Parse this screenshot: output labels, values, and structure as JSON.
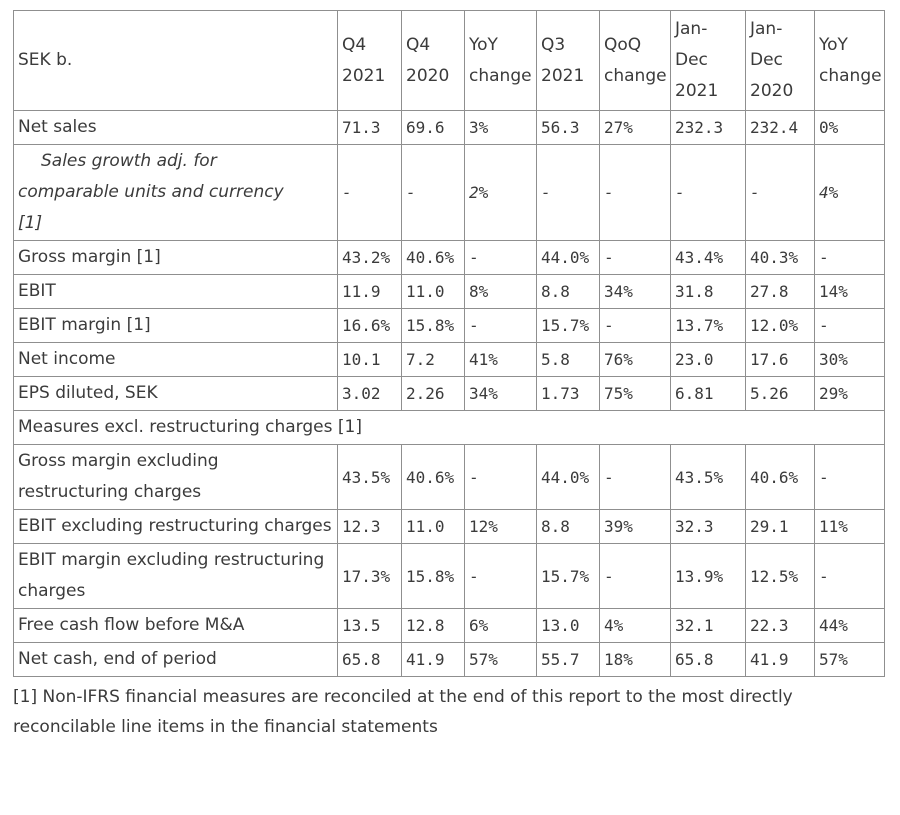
{
  "table": {
    "corner_label": "SEK b.",
    "columns": [
      "Q4\n2021",
      "Q4\n2020",
      "YoY\nchange",
      "Q3\n2021",
      "QoQ\nchange",
      "Jan-\nDec\n2021",
      "Jan-\nDec\n2020",
      "YoY\nchange"
    ],
    "rows": [
      {
        "type": "data",
        "label": "Net sales",
        "values": [
          "71.3",
          "69.6",
          "3%",
          "56.3",
          "27%",
          "232.3",
          "232.4",
          "0%"
        ]
      },
      {
        "type": "data",
        "italic": true,
        "indent": true,
        "label": "Sales growth adj. for\ncomparable units and currency\n[1]",
        "values": [
          "-",
          "-",
          "2%",
          "-",
          "-",
          "-",
          "-",
          "4%"
        ]
      },
      {
        "type": "data",
        "label": "Gross margin [1]",
        "values": [
          "43.2%",
          "40.6%",
          "-",
          "44.0%",
          "-",
          "43.4%",
          "40.3%",
          "-"
        ]
      },
      {
        "type": "data",
        "label": "EBIT",
        "values": [
          "11.9",
          "11.0",
          "8%",
          "8.8",
          "34%",
          "31.8",
          "27.8",
          "14%"
        ]
      },
      {
        "type": "data",
        "label": "EBIT margin [1]",
        "values": [
          "16.6%",
          "15.8%",
          "-",
          "15.7%",
          "-",
          "13.7%",
          "12.0%",
          "-"
        ]
      },
      {
        "type": "data",
        "label": "Net income",
        "values": [
          "10.1",
          "7.2",
          "41%",
          "5.8",
          "76%",
          "23.0",
          "17.6",
          "30%"
        ]
      },
      {
        "type": "data",
        "label": "EPS diluted, SEK",
        "values": [
          "3.02",
          "2.26",
          "34%",
          "1.73",
          "75%",
          "6.81",
          "5.26",
          "29%"
        ]
      },
      {
        "type": "section",
        "label": "Measures excl. restructuring charges [1]"
      },
      {
        "type": "data",
        "label": "Gross margin excluding restructuring charges",
        "values": [
          "43.5%",
          "40.6%",
          "-",
          "44.0%",
          "-",
          "43.5%",
          "40.6%",
          "-"
        ]
      },
      {
        "type": "data",
        "label": "EBIT excluding restructuring charges",
        "values": [
          "12.3",
          "11.0",
          "12%",
          "8.8",
          "39%",
          "32.3",
          "29.1",
          "11%"
        ]
      },
      {
        "type": "data",
        "label": "EBIT margin excluding restructuring charges",
        "values": [
          "17.3%",
          "15.8%",
          "-",
          "15.7%",
          "-",
          "13.9%",
          "12.5%",
          "-"
        ]
      },
      {
        "type": "data",
        "label": "Free cash flow before M&A",
        "values": [
          "13.5",
          "12.8",
          "6%",
          "13.0",
          "4%",
          "32.1",
          "22.3",
          "44%"
        ]
      },
      {
        "type": "data",
        "label": "Net cash, end of period",
        "values": [
          "65.8",
          "41.9",
          "57%",
          "55.7",
          "18%",
          "65.8",
          "41.9",
          "57%"
        ]
      }
    ]
  },
  "footnote": "[1] Non-IFRS financial measures are reconciled at the end of this report to the most directly reconcilable line items in the financial statements",
  "colors": {
    "background": "#ffffff",
    "border": "#8f8f8f",
    "text": "#3b3b3b"
  }
}
